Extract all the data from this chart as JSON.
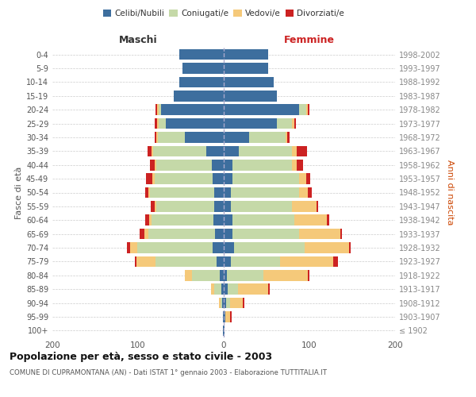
{
  "age_groups": [
    "100+",
    "95-99",
    "90-94",
    "85-89",
    "80-84",
    "75-79",
    "70-74",
    "65-69",
    "60-64",
    "55-59",
    "50-54",
    "45-49",
    "40-44",
    "35-39",
    "30-34",
    "25-29",
    "20-24",
    "15-19",
    "10-14",
    "5-9",
    "0-4"
  ],
  "birth_years": [
    "≤ 1902",
    "1903-1907",
    "1908-1912",
    "1913-1917",
    "1918-1922",
    "1923-1927",
    "1928-1932",
    "1933-1937",
    "1938-1942",
    "1943-1947",
    "1948-1952",
    "1953-1957",
    "1958-1962",
    "1963-1967",
    "1968-1972",
    "1973-1977",
    "1978-1982",
    "1983-1987",
    "1988-1992",
    "1993-1997",
    "1998-2002"
  ],
  "colors": {
    "celibi": "#3d6e9e",
    "coniugati": "#c5d9a8",
    "vedovi": "#f5c97a",
    "divorziati": "#cc2222"
  },
  "maschi_celibi": [
    1,
    1,
    2,
    3,
    5,
    8,
    13,
    10,
    12,
    11,
    11,
    13,
    14,
    20,
    45,
    68,
    73,
    58,
    52,
    48,
    52
  ],
  "maschi_coniugati": [
    0,
    0,
    2,
    8,
    32,
    72,
    88,
    78,
    72,
    68,
    75,
    68,
    65,
    62,
    32,
    8,
    3,
    0,
    0,
    0,
    0
  ],
  "maschi_vedovi": [
    0,
    0,
    2,
    4,
    8,
    22,
    8,
    5,
    3,
    2,
    2,
    2,
    2,
    2,
    2,
    2,
    2,
    0,
    0,
    0,
    0
  ],
  "maschi_divorziati": [
    0,
    0,
    0,
    0,
    0,
    2,
    4,
    5,
    5,
    4,
    4,
    8,
    5,
    5,
    2,
    3,
    2,
    0,
    0,
    0,
    0
  ],
  "femmine_celibi": [
    1,
    2,
    3,
    5,
    4,
    8,
    12,
    10,
    10,
    8,
    8,
    10,
    10,
    18,
    30,
    62,
    88,
    62,
    58,
    52,
    52
  ],
  "femmine_coniugati": [
    0,
    0,
    4,
    12,
    42,
    58,
    82,
    78,
    72,
    72,
    80,
    78,
    70,
    62,
    42,
    18,
    8,
    0,
    0,
    0,
    0
  ],
  "femmine_vedovi": [
    0,
    5,
    15,
    35,
    52,
    62,
    52,
    48,
    38,
    28,
    10,
    8,
    5,
    5,
    2,
    2,
    2,
    0,
    0,
    0,
    0
  ],
  "femmine_divorziati": [
    0,
    2,
    2,
    2,
    2,
    5,
    2,
    2,
    3,
    2,
    5,
    5,
    8,
    12,
    3,
    2,
    2,
    0,
    0,
    0,
    0
  ],
  "title": "Popolazione per età, sesso e stato civile - 2003",
  "subtitle": "COMUNE DI CUPRAMONTANA (AN) - Dati ISTAT 1° gennaio 2003 - Elaborazione TUTTITALIA.IT",
  "xlabel_left": "Maschi",
  "xlabel_right": "Femmine",
  "ylabel_left": "Fasce di età",
  "ylabel_right": "Anni di nascita",
  "xlim": 200,
  "legend_labels": [
    "Celibi/Nubili",
    "Coniugati/e",
    "Vedovi/e",
    "Divorziati/e"
  ]
}
